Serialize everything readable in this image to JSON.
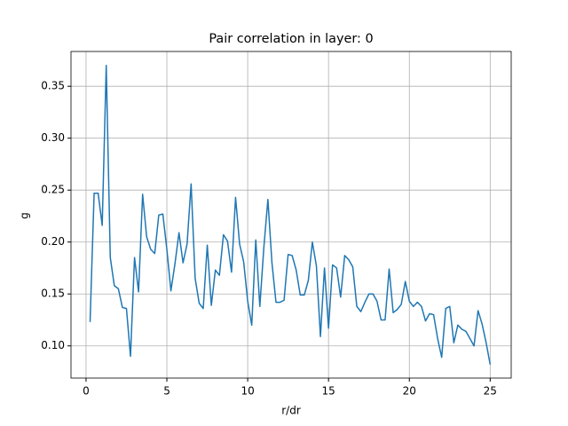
{
  "chart_data": {
    "type": "line",
    "title": "Pair correlation in layer: 0",
    "xlabel": "r/dr",
    "ylabel": "g",
    "x": [
      0.25,
      0.5,
      0.75,
      1.0,
      1.25,
      1.5,
      1.75,
      2.0,
      2.25,
      2.5,
      2.75,
      3.0,
      3.25,
      3.5,
      3.75,
      4.0,
      4.25,
      4.5,
      4.75,
      5.0,
      5.25,
      5.5,
      5.75,
      6.0,
      6.25,
      6.5,
      6.75,
      7.0,
      7.25,
      7.5,
      7.75,
      8.0,
      8.25,
      8.5,
      8.75,
      9.0,
      9.25,
      9.5,
      9.75,
      10.0,
      10.25,
      10.5,
      10.75,
      11.0,
      11.25,
      11.5,
      11.75,
      12.0,
      12.25,
      12.5,
      12.75,
      13.0,
      13.25,
      13.5,
      13.75,
      14.0,
      14.25,
      14.5,
      14.75,
      15.0,
      15.25,
      15.5,
      15.75,
      16.0,
      16.25,
      16.5,
      16.75,
      17.0,
      17.25,
      17.5,
      17.75,
      18.0,
      18.25,
      18.5,
      18.75,
      19.0,
      19.25,
      19.5,
      19.75,
      20.0,
      20.25,
      20.5,
      20.75,
      21.0,
      21.25,
      21.5,
      21.75,
      22.0,
      22.25,
      22.5,
      22.75,
      23.0,
      23.25,
      23.5,
      23.75,
      24.0,
      24.25,
      24.5,
      24.75,
      25.0
    ],
    "series": [
      {
        "color": "#1f77b4",
        "values": [
          0.123,
          0.247,
          0.247,
          0.216,
          0.37,
          0.185,
          0.158,
          0.155,
          0.137,
          0.136,
          0.09,
          0.185,
          0.152,
          0.246,
          0.205,
          0.193,
          0.189,
          0.226,
          0.227,
          0.193,
          0.153,
          0.179,
          0.209,
          0.18,
          0.198,
          0.256,
          0.165,
          0.141,
          0.136,
          0.197,
          0.139,
          0.173,
          0.168,
          0.207,
          0.201,
          0.171,
          0.243,
          0.198,
          0.181,
          0.143,
          0.12,
          0.202,
          0.138,
          0.195,
          0.241,
          0.18,
          0.142,
          0.142,
          0.144,
          0.188,
          0.187,
          0.173,
          0.149,
          0.149,
          0.163,
          0.2,
          0.177,
          0.109,
          0.175,
          0.117,
          0.178,
          0.175,
          0.147,
          0.187,
          0.183,
          0.176,
          0.138,
          0.133,
          0.142,
          0.15,
          0.15,
          0.143,
          0.125,
          0.125,
          0.174,
          0.132,
          0.135,
          0.14,
          0.162,
          0.143,
          0.138,
          0.142,
          0.138,
          0.124,
          0.131,
          0.13,
          0.107,
          0.089,
          0.136,
          0.138,
          0.103,
          0.12,
          0.116,
          0.114,
          0.107,
          0.1,
          0.134,
          0.121,
          0.103,
          0.082
        ]
      }
    ],
    "xlim": [
      -0.93,
      26.3
    ],
    "ylim": [
      0.069,
      0.3835
    ],
    "xticks": [
      0,
      5,
      10,
      15,
      20,
      25
    ],
    "yticks": [
      {
        "value": 0.1,
        "label": "0.10"
      },
      {
        "value": 0.15,
        "label": "0.15"
      },
      {
        "value": 0.2,
        "label": "0.20"
      },
      {
        "value": 0.25,
        "label": "0.25"
      },
      {
        "value": 0.3,
        "label": "0.30"
      },
      {
        "value": 0.35,
        "label": "0.35"
      }
    ],
    "grid": true
  }
}
